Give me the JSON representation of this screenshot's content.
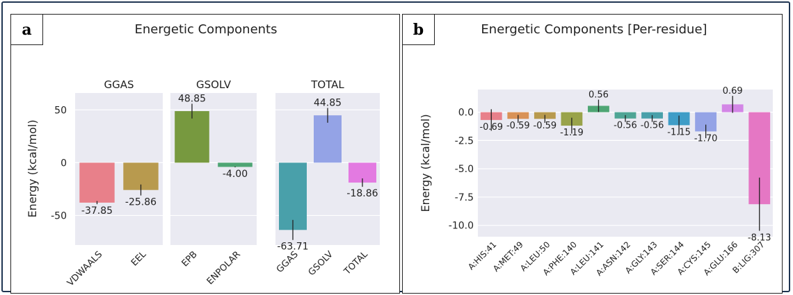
{
  "panels": {
    "a": {
      "letter": "a",
      "title": "Energetic Components"
    },
    "b": {
      "letter": "b",
      "title": "Energetic Components [Per-residue]"
    }
  },
  "chart_data": [
    {
      "type": "bar",
      "title": "Energetic Components",
      "ylabel": "Energy (kcal/mol)",
      "ylim": [
        -78,
        66
      ],
      "yticks": [
        50,
        0,
        -50
      ],
      "grid": true,
      "subplots": [
        {
          "title": "GGAS",
          "categories": [
            "VDWAALS",
            "EEL"
          ],
          "values": [
            -37.85,
            -25.86
          ],
          "errors": [
            1.5,
            5.2
          ],
          "labels": [
            "-37.85",
            "-25.86"
          ],
          "colors": [
            "#e8808a",
            "#b89a4e"
          ]
        },
        {
          "title": "GSOLV",
          "categories": [
            "EPB",
            "ENPOLAR"
          ],
          "values": [
            48.85,
            -4.0
          ],
          "errors": [
            7.0,
            0.4
          ],
          "labels": [
            "48.85",
            "-4.00"
          ],
          "colors": [
            "#77993f",
            "#4ea574"
          ]
        },
        {
          "title": "TOTAL",
          "categories": [
            "GGAS",
            "GSOLV",
            "TOTAL"
          ],
          "values": [
            -63.71,
            44.85,
            -18.86
          ],
          "errors": [
            9.5,
            7.0,
            4.0
          ],
          "labels": [
            "-63.71",
            "44.85",
            "-18.86"
          ],
          "colors": [
            "#49a0aa",
            "#94a3e6",
            "#e37ae1"
          ]
        }
      ]
    },
    {
      "type": "bar",
      "title": "Energetic Components [Per-residue]",
      "ylabel": "Energy (kcal/mol)",
      "ylim": [
        -11,
        2
      ],
      "yticks": [
        0.0,
        -2.5,
        -5.0,
        -7.5,
        -10.0
      ],
      "ytick_labels": [
        "0.0",
        "-2.5",
        "-5.0",
        "-7.5",
        "-10.0"
      ],
      "grid": true,
      "categories": [
        "A:HIS:41",
        "A:MET:49",
        "A:LEU:50",
        "A:PHE:140",
        "A:LEU:141",
        "A:ASN:142",
        "A:GLY:143",
        "A:SER:144",
        "A:CYS:145",
        "A:GLU:166",
        "B:LIG:307"
      ],
      "values": [
        -0.69,
        -0.59,
        -0.59,
        -1.19,
        0.56,
        -0.56,
        -0.56,
        -1.15,
        -1.7,
        0.69,
        -8.13
      ],
      "errors": [
        0.95,
        0.35,
        0.35,
        0.7,
        0.55,
        0.3,
        0.3,
        0.85,
        0.6,
        0.75,
        2.35
      ],
      "labels": [
        "-0.69",
        "-0.59",
        "-0.59",
        "-1.19",
        "0.56",
        "-0.56",
        "-0.56",
        "-1.15",
        "-1.70",
        "0.69",
        "-8.13"
      ],
      "colors": [
        "#e8808a",
        "#d99257",
        "#b89a4e",
        "#99a34a",
        "#4ea574",
        "#4fa595",
        "#49a0aa",
        "#3f9dc7",
        "#94a3e6",
        "#d386e6",
        "#e577c4"
      ]
    }
  ]
}
